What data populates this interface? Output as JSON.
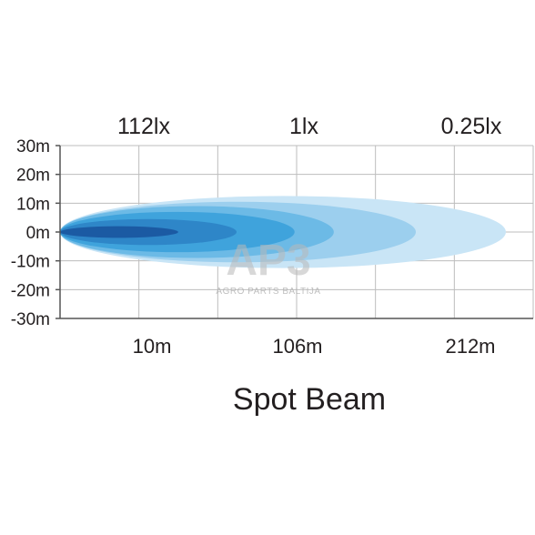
{
  "chart_data": {
    "type": "area",
    "title": "Spot Beam",
    "lux_labels": [
      "112lx",
      "1lx",
      "0.25lx"
    ],
    "x_ticks": [
      "10m",
      "106m",
      "212m"
    ],
    "y_ticks": [
      "30m",
      "20m",
      "10m",
      "0m",
      "-10m",
      "-20m",
      "-30m"
    ],
    "ylim": [
      -30,
      30
    ],
    "grid": true,
    "beam_zones": [
      {
        "reach_fraction": 0.265,
        "half_width_m": 2,
        "color": "#1b5aa3"
      },
      {
        "reach_fraction": 0.396,
        "half_width_m": 4.5,
        "color": "#2e86c8"
      },
      {
        "reach_fraction": 0.526,
        "half_width_m": 7,
        "color": "#3fa3dc"
      },
      {
        "reach_fraction": 0.614,
        "half_width_m": 9,
        "color": "#6cbae6"
      },
      {
        "reach_fraction": 0.798,
        "half_width_m": 10.5,
        "color": "#9ccfee"
      },
      {
        "reach_fraction": 1.0,
        "half_width_m": 12.5,
        "color": "#c9e5f6"
      }
    ],
    "watermark": {
      "logo": "AP3",
      "text": "AGRO PARTS BALTIJA"
    }
  }
}
